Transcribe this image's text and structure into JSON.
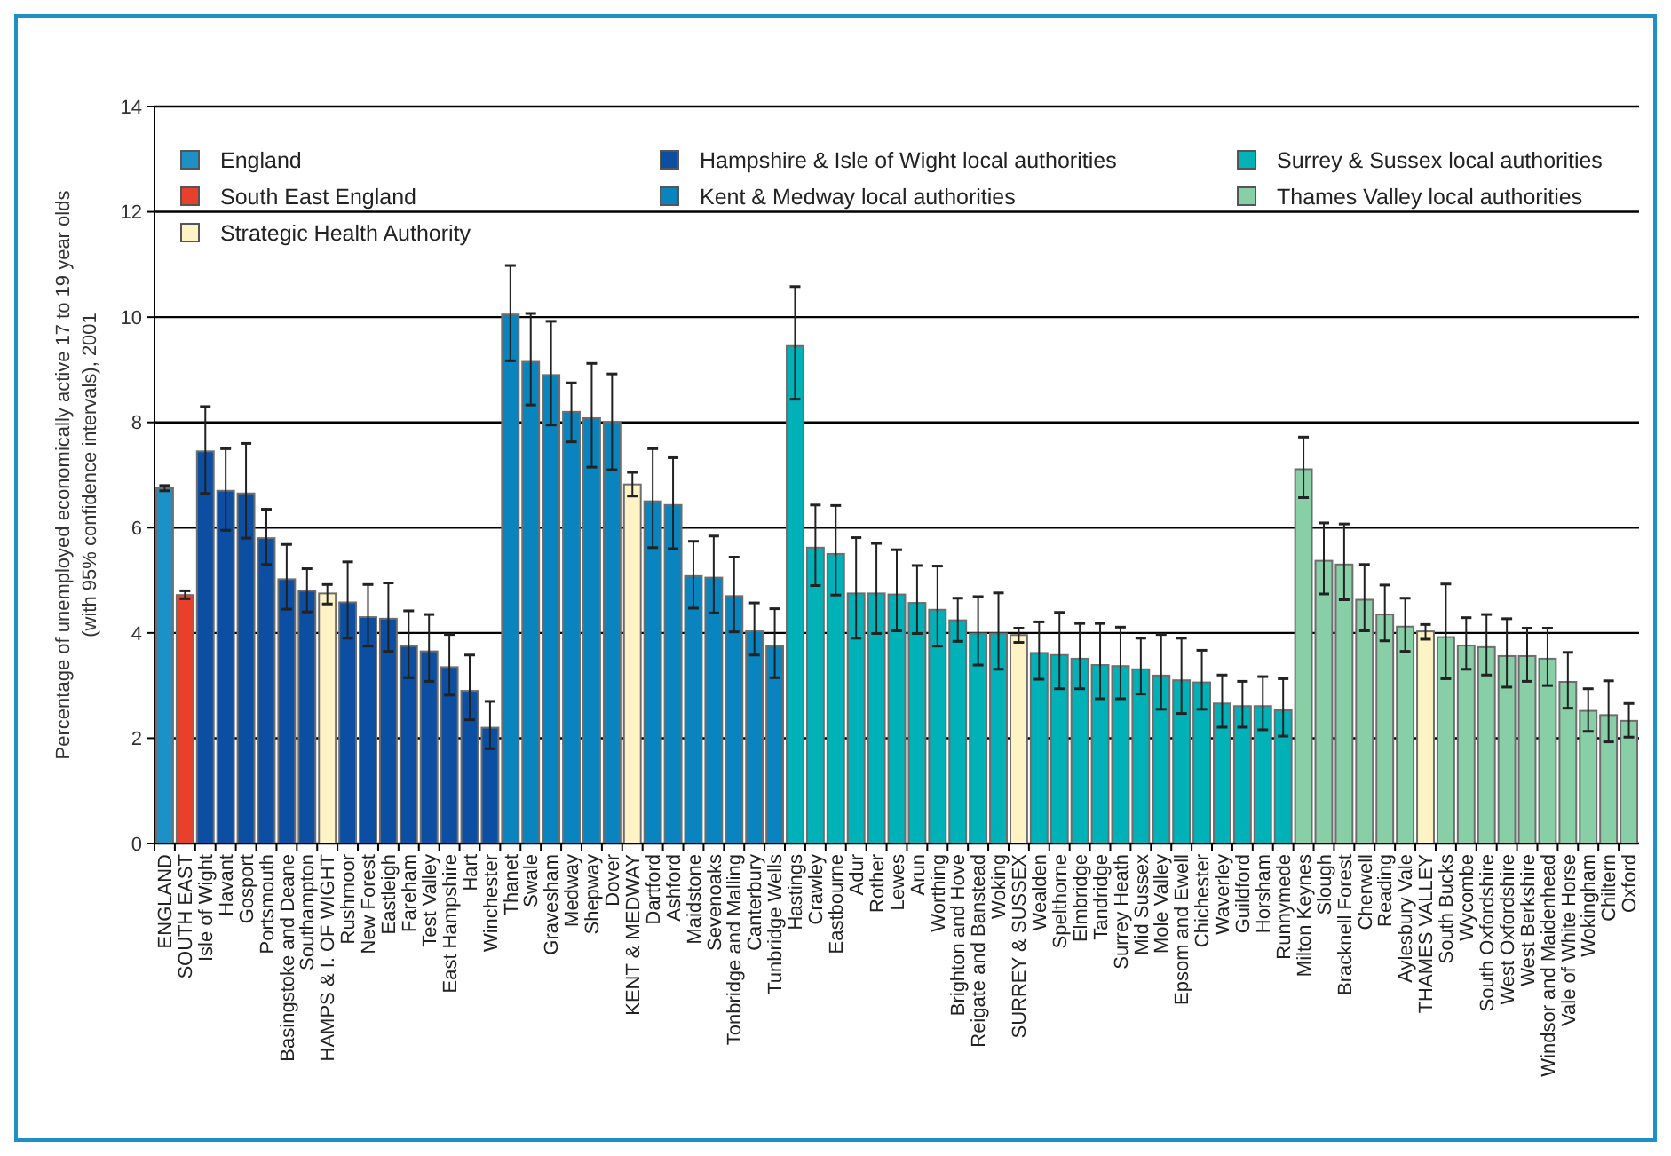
{
  "chart_data": {
    "type": "bar",
    "stacked": true,
    "ylabel": "Percentage of unemployed economically active 17 to 19 year olds\n(with 95% confidence intervals), 2001",
    "categories": [
      "ENGLAND",
      "SOUTH EAST",
      "Isle of Wight",
      "Havant",
      "Gosport",
      "Portsmouth",
      "Basingstoke and Deane",
      "Southampton",
      "HAMPS & I. OF WIGHT",
      "Rushmoor",
      "New Forest",
      "Eastleigh",
      "Fareham",
      "Test Valley",
      "East Hampshire",
      "Hart",
      "Winchester",
      "Thanet",
      "Swale",
      "Gravesham",
      "Medway",
      "Shepway",
      "Dover",
      "KENT & MEDWAY",
      "Dartford",
      "Ashford",
      "Maidstone",
      "Sevenoaks",
      "Tonbridge and Malling",
      "Canterbury",
      "Tunbridge Wells",
      "Hastings",
      "Crawley",
      "Eastbourne",
      "Adur",
      "Rother",
      "Lewes",
      "Arun",
      "Worthing",
      "Brighton and Hove",
      "Reigate and Banstead",
      "Woking",
      "SURREY & SUSSEX",
      "Wealden",
      "Spelthorne",
      "Elmbridge",
      "Tandridge",
      "Surrey Heath",
      "Mid Sussex",
      "Mole Valley",
      "Epsom and Ewell",
      "Chichester",
      "Waverley",
      "Guildford",
      "Horsham",
      "Runnymede",
      "Milton Keynes",
      "Slough",
      "Bracknell Forest",
      "Cherwell",
      "Reading",
      "Aylesbury Vale",
      "THAMES VALLEY",
      "South Bucks",
      "Wycombe",
      "South Oxfordshire",
      "West Oxfordshire",
      "West Berkshire",
      "Windsor and Maidenhead",
      "Vale of White Horse",
      "Wokingham",
      "Chiltern",
      "Oxford"
    ],
    "series": [
      {
        "name": "England",
        "color": "#1e90c8",
        "values": [
          6.75,
          null,
          null,
          null,
          null,
          null,
          null,
          null,
          null,
          null,
          null,
          null,
          null,
          null,
          null,
          null,
          null,
          null,
          null,
          null,
          null,
          null,
          null,
          null,
          null,
          null,
          null,
          null,
          null,
          null,
          null,
          null,
          null,
          null,
          null,
          null,
          null,
          null,
          null,
          null,
          null,
          null,
          null,
          null,
          null,
          null,
          null,
          null,
          null,
          null,
          null,
          null,
          null,
          null,
          null,
          null,
          null,
          null,
          null,
          null,
          null,
          null,
          null,
          null,
          null,
          null,
          null,
          null,
          null,
          null,
          null,
          null,
          null
        ],
        "errors": [
          [
            6.7,
            6.8
          ],
          null,
          null,
          null,
          null,
          null,
          null,
          null,
          null,
          null,
          null,
          null,
          null,
          null,
          null,
          null,
          null,
          null,
          null,
          null,
          null,
          null,
          null,
          null,
          null,
          null,
          null,
          null,
          null,
          null,
          null,
          null,
          null,
          null,
          null,
          null,
          null,
          null,
          null,
          null,
          null,
          null,
          null,
          null,
          null,
          null,
          null,
          null,
          null,
          null,
          null,
          null,
          null,
          null,
          null,
          null,
          null,
          null,
          null,
          null,
          null,
          null,
          null,
          null,
          null,
          null,
          null,
          null,
          null,
          null,
          null,
          null,
          null
        ]
      },
      {
        "name": "South East England",
        "color": "#e8402a",
        "values": [
          null,
          4.72,
          null,
          null,
          null,
          null,
          null,
          null,
          null,
          null,
          null,
          null,
          null,
          null,
          null,
          null,
          null,
          null,
          null,
          null,
          null,
          null,
          null,
          null,
          null,
          null,
          null,
          null,
          null,
          null,
          null,
          null,
          null,
          null,
          null,
          null,
          null,
          null,
          null,
          null,
          null,
          null,
          null,
          null,
          null,
          null,
          null,
          null,
          null,
          null,
          null,
          null,
          null,
          null,
          null,
          null,
          null,
          null,
          null,
          null,
          null,
          null,
          null,
          null,
          null,
          null,
          null,
          null,
          null,
          null,
          null,
          null,
          null
        ],
        "errors": [
          null,
          [
            4.65,
            4.8
          ],
          null,
          null,
          null,
          null,
          null,
          null,
          null,
          null,
          null,
          null,
          null,
          null,
          null,
          null,
          null,
          null,
          null,
          null,
          null,
          null,
          null,
          null,
          null,
          null,
          null,
          null,
          null,
          null,
          null,
          null,
          null,
          null,
          null,
          null,
          null,
          null,
          null,
          null,
          null,
          null,
          null,
          null,
          null,
          null,
          null,
          null,
          null,
          null,
          null,
          null,
          null,
          null,
          null,
          null,
          null,
          null,
          null,
          null,
          null,
          null,
          null,
          null,
          null,
          null,
          null,
          null,
          null,
          null,
          null,
          null,
          null
        ]
      },
      {
        "name": "Strategic Health Authority",
        "color": "#fdf3c4",
        "values": [
          null,
          null,
          null,
          null,
          null,
          null,
          null,
          null,
          4.75,
          null,
          null,
          null,
          null,
          null,
          null,
          null,
          null,
          null,
          null,
          null,
          null,
          null,
          null,
          6.82,
          null,
          null,
          null,
          null,
          null,
          null,
          null,
          null,
          null,
          null,
          null,
          null,
          null,
          null,
          null,
          null,
          null,
          null,
          3.96,
          null,
          null,
          null,
          null,
          null,
          null,
          null,
          null,
          null,
          null,
          null,
          null,
          null,
          null,
          null,
          null,
          null,
          null,
          null,
          4.03,
          null,
          null,
          null,
          null,
          null,
          null,
          null,
          null,
          null,
          null
        ],
        "errors": [
          null,
          null,
          null,
          null,
          null,
          null,
          null,
          null,
          [
            4.55,
            4.92
          ],
          null,
          null,
          null,
          null,
          null,
          null,
          null,
          null,
          null,
          null,
          null,
          null,
          null,
          null,
          [
            6.6,
            7.05
          ],
          null,
          null,
          null,
          null,
          null,
          null,
          null,
          null,
          null,
          null,
          null,
          null,
          null,
          null,
          null,
          null,
          null,
          null,
          [
            3.82,
            4.09
          ],
          null,
          null,
          null,
          null,
          null,
          null,
          null,
          null,
          null,
          null,
          null,
          null,
          null,
          null,
          null,
          null,
          null,
          null,
          null,
          [
            3.88,
            4.16
          ],
          null,
          null,
          null,
          null,
          null,
          null,
          null,
          null,
          null,
          null
        ]
      },
      {
        "name": "Hampshire & Isle of Wight local authorities",
        "color": "#0b4ea2",
        "values": [
          null,
          null,
          7.45,
          6.7,
          6.65,
          5.8,
          5.02,
          4.8,
          null,
          4.58,
          4.3,
          4.27,
          3.75,
          3.65,
          3.35,
          2.9,
          2.2,
          null,
          null,
          null,
          null,
          null,
          null,
          null,
          null,
          null,
          null,
          null,
          null,
          null,
          null,
          null,
          null,
          null,
          null,
          null,
          null,
          null,
          null,
          null,
          null,
          null,
          null,
          null,
          null,
          null,
          null,
          null,
          null,
          null,
          null,
          null,
          null,
          null,
          null,
          null,
          null,
          null,
          null,
          null,
          null,
          null,
          null,
          null,
          null,
          null,
          null,
          null,
          null,
          null,
          null,
          null,
          null
        ],
        "errors": [
          null,
          null,
          [
            6.65,
            8.3
          ],
          [
            5.95,
            7.5
          ],
          [
            5.8,
            7.6
          ],
          [
            5.3,
            6.35
          ],
          [
            4.45,
            5.68
          ],
          [
            4.4,
            5.22
          ],
          null,
          [
            3.9,
            5.35
          ],
          [
            3.75,
            4.92
          ],
          [
            3.65,
            4.95
          ],
          [
            3.15,
            4.42
          ],
          [
            3.08,
            4.35
          ],
          [
            2.82,
            3.97
          ],
          [
            2.35,
            3.58
          ],
          [
            1.8,
            2.7
          ],
          null,
          null,
          null,
          null,
          null,
          null,
          null,
          null,
          null,
          null,
          null,
          null,
          null,
          null,
          null,
          null,
          null,
          null,
          null,
          null,
          null,
          null,
          null,
          null,
          null,
          null,
          null,
          null,
          null,
          null,
          null,
          null,
          null,
          null,
          null,
          null,
          null,
          null,
          null,
          null,
          null,
          null,
          null,
          null,
          null,
          null,
          null,
          null,
          null,
          null,
          null,
          null,
          null,
          null,
          null,
          null
        ]
      },
      {
        "name": "Kent & Medway local authorities",
        "color": "#0a84bf",
        "values": [
          null,
          null,
          null,
          null,
          null,
          null,
          null,
          null,
          null,
          null,
          null,
          null,
          null,
          null,
          null,
          null,
          null,
          10.05,
          9.15,
          8.9,
          8.2,
          8.08,
          8.0,
          null,
          6.5,
          6.43,
          5.08,
          5.05,
          4.7,
          4.03,
          3.75,
          null,
          null,
          null,
          null,
          null,
          null,
          null,
          null,
          null,
          null,
          null,
          null,
          null,
          null,
          null,
          null,
          null,
          null,
          null,
          null,
          null,
          null,
          null,
          null,
          null,
          null,
          null,
          null,
          null,
          null,
          null,
          null,
          null,
          null,
          null,
          null,
          null,
          null,
          null,
          null,
          null,
          null
        ],
        "errors": [
          null,
          null,
          null,
          null,
          null,
          null,
          null,
          null,
          null,
          null,
          null,
          null,
          null,
          null,
          null,
          null,
          null,
          [
            9.17,
            10.98
          ],
          [
            8.33,
            10.07
          ],
          [
            7.95,
            9.92
          ],
          [
            7.63,
            8.75
          ],
          [
            7.15,
            9.12
          ],
          [
            7.1,
            8.92
          ],
          null,
          [
            5.62,
            7.5
          ],
          [
            5.6,
            7.33
          ],
          [
            4.47,
            5.74
          ],
          [
            4.38,
            5.84
          ],
          [
            4.02,
            5.44
          ],
          [
            3.58,
            4.57
          ],
          [
            3.15,
            4.46
          ],
          null,
          null,
          null,
          null,
          null,
          null,
          null,
          null,
          null,
          null,
          null,
          null,
          null,
          null,
          null,
          null,
          null,
          null,
          null,
          null,
          null,
          null,
          null,
          null,
          null,
          null,
          null,
          null,
          null,
          null,
          null,
          null,
          null,
          null,
          null,
          null,
          null,
          null,
          null,
          null,
          null,
          null
        ]
      },
      {
        "name": "Surrey & Sussex local authorities",
        "color": "#00b1b8",
        "values": [
          null,
          null,
          null,
          null,
          null,
          null,
          null,
          null,
          null,
          null,
          null,
          null,
          null,
          null,
          null,
          null,
          null,
          null,
          null,
          null,
          null,
          null,
          null,
          null,
          null,
          null,
          null,
          null,
          null,
          null,
          null,
          9.45,
          5.62,
          5.5,
          4.75,
          4.75,
          4.73,
          4.57,
          4.44,
          4.24,
          3.99,
          3.99,
          null,
          3.62,
          3.58,
          3.51,
          3.39,
          3.37,
          3.31,
          3.19,
          3.1,
          3.06,
          2.66,
          2.61,
          2.61,
          2.53,
          null,
          null,
          null,
          null,
          null,
          null,
          null,
          null,
          null,
          null,
          null,
          null,
          null,
          null,
          null,
          null,
          null
        ],
        "errors": [
          null,
          null,
          null,
          null,
          null,
          null,
          null,
          null,
          null,
          null,
          null,
          null,
          null,
          null,
          null,
          null,
          null,
          null,
          null,
          null,
          null,
          null,
          null,
          null,
          null,
          null,
          null,
          null,
          null,
          null,
          null,
          [
            8.44,
            10.58
          ],
          [
            4.9,
            6.43
          ],
          [
            4.72,
            6.42
          ],
          [
            3.9,
            5.81
          ],
          [
            3.99,
            5.7
          ],
          [
            4.04,
            5.58
          ],
          [
            3.99,
            5.28
          ],
          [
            3.75,
            5.27
          ],
          [
            3.84,
            4.66
          ],
          [
            3.39,
            4.69
          ],
          [
            3.31,
            4.76
          ],
          null,
          [
            3.12,
            4.21
          ],
          [
            2.94,
            4.39
          ],
          [
            2.94,
            4.18
          ],
          [
            2.75,
            4.18
          ],
          [
            2.75,
            4.11
          ],
          [
            2.84,
            3.9
          ],
          [
            2.55,
            3.97
          ],
          [
            2.47,
            3.9
          ],
          [
            2.55,
            3.67
          ],
          [
            2.21,
            3.2
          ],
          [
            2.21,
            3.08
          ],
          [
            2.16,
            3.17
          ],
          [
            2.04,
            3.13
          ],
          null,
          null,
          null,
          null,
          null,
          null,
          null,
          null,
          null,
          null,
          null,
          null,
          null,
          null,
          null,
          null,
          null
        ]
      },
      {
        "name": "Thames Valley local authorities",
        "color": "#88cfa8",
        "values": [
          null,
          null,
          null,
          null,
          null,
          null,
          null,
          null,
          null,
          null,
          null,
          null,
          null,
          null,
          null,
          null,
          null,
          null,
          null,
          null,
          null,
          null,
          null,
          null,
          null,
          null,
          null,
          null,
          null,
          null,
          null,
          null,
          null,
          null,
          null,
          null,
          null,
          null,
          null,
          null,
          null,
          null,
          null,
          null,
          null,
          null,
          null,
          null,
          null,
          null,
          null,
          null,
          null,
          null,
          null,
          null,
          7.11,
          5.37,
          5.3,
          4.63,
          4.35,
          4.12,
          null,
          3.92,
          3.76,
          3.73,
          3.56,
          3.56,
          3.51,
          3.07,
          2.52,
          2.44,
          2.33
        ],
        "errors": [
          null,
          null,
          null,
          null,
          null,
          null,
          null,
          null,
          null,
          null,
          null,
          null,
          null,
          null,
          null,
          null,
          null,
          null,
          null,
          null,
          null,
          null,
          null,
          null,
          null,
          null,
          null,
          null,
          null,
          null,
          null,
          null,
          null,
          null,
          null,
          null,
          null,
          null,
          null,
          null,
          null,
          null,
          null,
          null,
          null,
          null,
          null,
          null,
          null,
          null,
          null,
          null,
          null,
          null,
          null,
          null,
          [
            6.57,
            7.72
          ],
          [
            4.74,
            6.09
          ],
          [
            4.63,
            6.07
          ],
          [
            4.04,
            5.3
          ],
          [
            3.85,
            4.91
          ],
          [
            3.65,
            4.66
          ],
          null,
          [
            3.13,
            4.93
          ],
          [
            3.31,
            4.29
          ],
          [
            3.2,
            4.35
          ],
          [
            2.97,
            4.27
          ],
          [
            3.08,
            4.09
          ],
          [
            3.0,
            4.09
          ],
          [
            2.57,
            3.63
          ],
          [
            2.13,
            2.94
          ],
          [
            1.93,
            3.09
          ],
          [
            2.02,
            2.66
          ]
        ]
      }
    ],
    "ylim": [
      0,
      14
    ],
    "yticks": [
      0,
      2,
      4,
      6,
      8,
      10,
      12,
      14
    ],
    "grid": "y",
    "legend": "top left"
  }
}
